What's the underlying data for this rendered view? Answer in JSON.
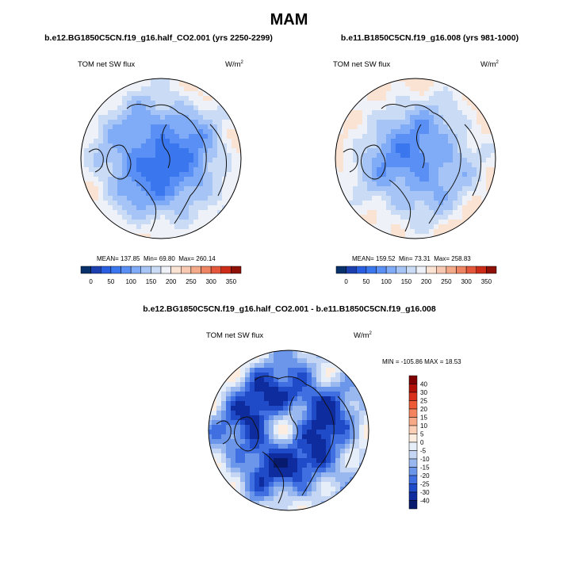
{
  "figure_title": "MAM",
  "chart_data": [
    {
      "type": "heatmap",
      "projection": "north-polar-stereographic",
      "title": "b.e12.BG1850C5CN.f19_g16.half_CO2.001 (yrs 2250-2299)",
      "variable": "TOM net SW flux",
      "units_base": "W/m",
      "units_exp": "2",
      "stats": {
        "mean_label": "MEAN=",
        "mean": "137.85",
        "min_label": "Min=",
        "min": "69.80",
        "max_label": "Max=",
        "max": "260.14"
      },
      "colorbar": {
        "ticks": [
          "0",
          "50",
          "100",
          "150",
          "200",
          "250",
          "300",
          "350"
        ],
        "colors": [
          "#08306b",
          "#1c3fb0",
          "#2a5ee0",
          "#3a77ee",
          "#5a90f5",
          "#80abf7",
          "#a6c4f5",
          "#c9dbf5",
          "#eef1f7",
          "#fbe3d4",
          "#f8c8b0",
          "#f4a988",
          "#ee8462",
          "#e4573a",
          "#cc2b17",
          "#8e1108"
        ]
      },
      "field": {
        "pole_value": 85,
        "mid_value": 120,
        "edge_value": 215
      }
    },
    {
      "type": "heatmap",
      "projection": "north-polar-stereographic",
      "title": "b.e11.B1850C5CN.f19_g16.008 (yrs 981-1000)",
      "variable": "TOM net SW flux",
      "units_base": "W/m",
      "units_exp": "2",
      "stats": {
        "mean_label": "MEAN=",
        "mean": "159.52",
        "min_label": "Min=",
        "min": "73.31",
        "max_label": "Max=",
        "max": "258.83"
      },
      "colorbar": {
        "ticks": [
          "0",
          "50",
          "100",
          "150",
          "200",
          "250",
          "300",
          "350"
        ],
        "colors": [
          "#08306b",
          "#1c3fb0",
          "#2a5ee0",
          "#3a77ee",
          "#5a90f5",
          "#80abf7",
          "#a6c4f5",
          "#c9dbf5",
          "#eef1f7",
          "#fbe3d4",
          "#f8c8b0",
          "#f4a988",
          "#ee8462",
          "#e4573a",
          "#cc2b17",
          "#8e1108"
        ]
      },
      "field": {
        "pole_value": 100,
        "mid_value": 145,
        "edge_value": 225
      }
    },
    {
      "type": "heatmap",
      "projection": "north-polar-stereographic",
      "title": "b.e12.BG1850C5CN.f19_g16.half_CO2.001 - b.e11.B1850C5CN.f19_g16.008",
      "variable": "TOM net SW flux",
      "units_base": "W/m",
      "units_exp": "2",
      "stats": {
        "label": "MIN = -105.86 MAX =  18.53",
        "min": -105.86,
        "max": 18.53
      },
      "colorbar": {
        "ticks": [
          "40",
          "30",
          "25",
          "20",
          "15",
          "10",
          "5",
          "0",
          "-5",
          "-10",
          "-15",
          "-20",
          "-25",
          "-30",
          "-40"
        ],
        "colors": [
          "#7f0000",
          "#b01005",
          "#d8301a",
          "#ee5a36",
          "#f4845e",
          "#f8aa88",
          "#fbcfb5",
          "#fdece0",
          "#e6eef9",
          "#c4d6f3",
          "#98b8ef",
          "#6b96ea",
          "#3f6fe0",
          "#1f4bc8",
          "#0f2c9e",
          "#081a6e"
        ]
      },
      "field": {
        "pole_value": -4,
        "mid_value": -33,
        "edge_value": -8
      }
    }
  ]
}
